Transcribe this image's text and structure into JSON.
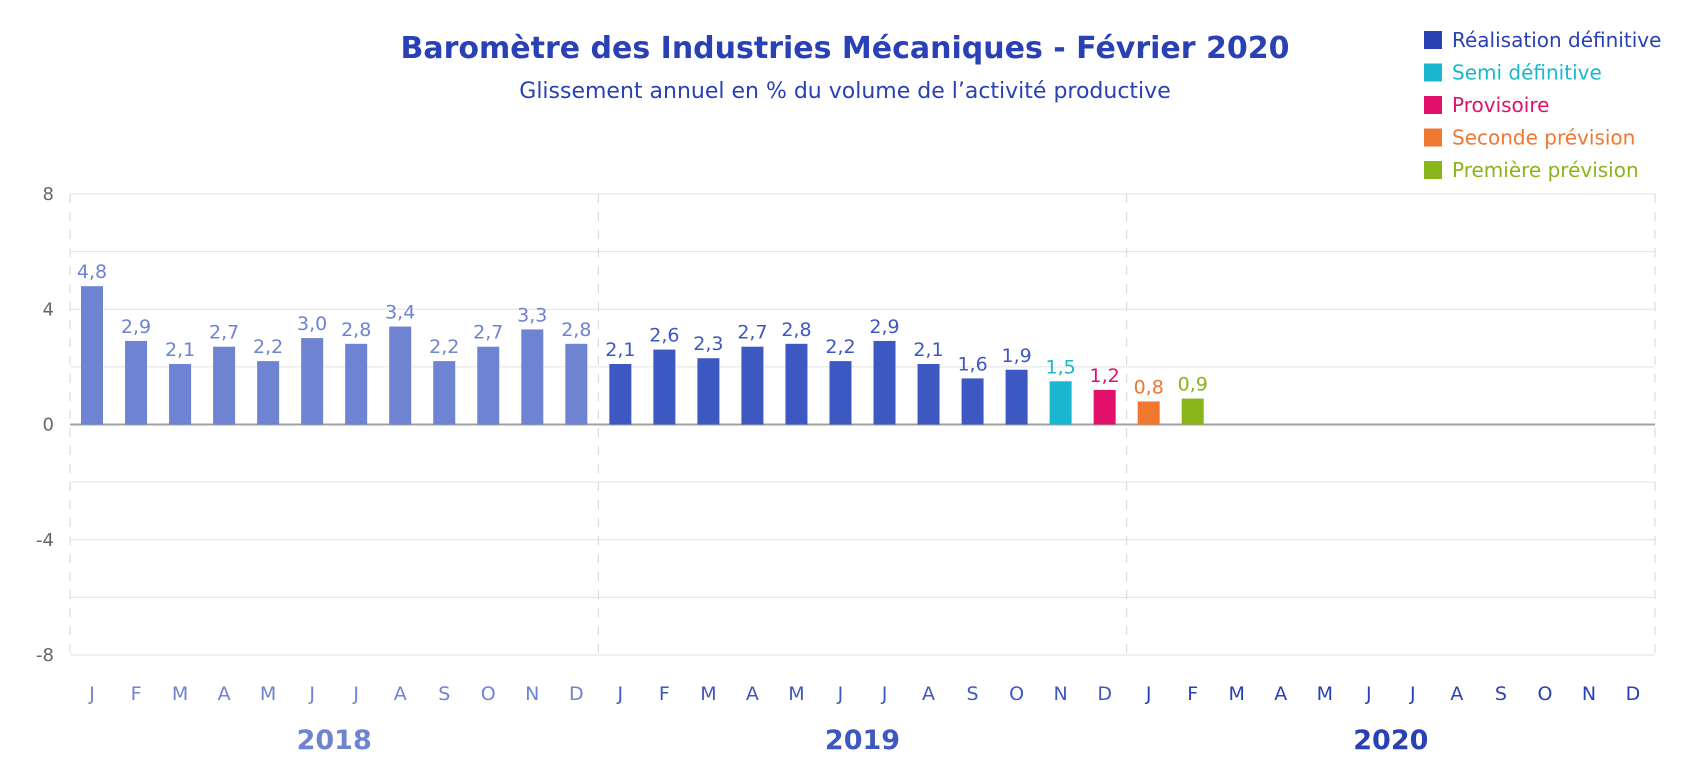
{
  "chart_data": {
    "type": "bar",
    "title": "Baromètre des Industries Mécaniques - Février 2020",
    "subtitle": "Glissement annuel en % du volume de l’activité productive",
    "ylim": [
      -8,
      8
    ],
    "y_ticks": [
      "8",
      "4",
      "0",
      "-4",
      "-8"
    ],
    "grid": true,
    "legend_position": "top-right",
    "legend": [
      {
        "label": "Réalisation définitive",
        "color": "#2a40b5"
      },
      {
        "label": "Semi définitive",
        "color": "#19b7cf"
      },
      {
        "label": "Provisoire",
        "color": "#e0106b"
      },
      {
        "label": "Seconde prévision",
        "color": "#f0772f"
      },
      {
        "label": "Première prévision",
        "color": "#8ab51a"
      }
    ],
    "years": [
      {
        "label": "2018",
        "color": "#6e83d2"
      },
      {
        "label": "2019",
        "color": "#3d59c1"
      },
      {
        "label": "2020",
        "color": "#2a40b5"
      }
    ],
    "months": [
      "J",
      "F",
      "M",
      "A",
      "M",
      "J",
      "J",
      "A",
      "S",
      "O",
      "N",
      "D"
    ],
    "bars": [
      {
        "year": 0,
        "value": 4.8,
        "label": "4,8",
        "color": "#6e83d2"
      },
      {
        "year": 0,
        "value": 2.9,
        "label": "2,9",
        "color": "#6e83d2"
      },
      {
        "year": 0,
        "value": 2.1,
        "label": "2,1",
        "color": "#6e83d2"
      },
      {
        "year": 0,
        "value": 2.7,
        "label": "2,7",
        "color": "#6e83d2"
      },
      {
        "year": 0,
        "value": 2.2,
        "label": "2,2",
        "color": "#6e83d2"
      },
      {
        "year": 0,
        "value": 3.0,
        "label": "3,0",
        "color": "#6e83d2"
      },
      {
        "year": 0,
        "value": 2.8,
        "label": "2,8",
        "color": "#6e83d2"
      },
      {
        "year": 0,
        "value": 3.4,
        "label": "3,4",
        "color": "#6e83d2"
      },
      {
        "year": 0,
        "value": 2.2,
        "label": "2,2",
        "color": "#6e83d2"
      },
      {
        "year": 0,
        "value": 2.7,
        "label": "2,7",
        "color": "#6e83d2"
      },
      {
        "year": 0,
        "value": 3.3,
        "label": "3,3",
        "color": "#6e83d2"
      },
      {
        "year": 0,
        "value": 2.8,
        "label": "2,8",
        "color": "#6e83d2"
      },
      {
        "year": 1,
        "value": 2.1,
        "label": "2,1",
        "color": "#3d59c1"
      },
      {
        "year": 1,
        "value": 2.6,
        "label": "2,6",
        "color": "#3d59c1"
      },
      {
        "year": 1,
        "value": 2.3,
        "label": "2,3",
        "color": "#3d59c1"
      },
      {
        "year": 1,
        "value": 2.7,
        "label": "2,7",
        "color": "#3d59c1"
      },
      {
        "year": 1,
        "value": 2.8,
        "label": "2,8",
        "color": "#3d59c1"
      },
      {
        "year": 1,
        "value": 2.2,
        "label": "2,2",
        "color": "#3d59c1"
      },
      {
        "year": 1,
        "value": 2.9,
        "label": "2,9",
        "color": "#3d59c1"
      },
      {
        "year": 1,
        "value": 2.1,
        "label": "2,1",
        "color": "#3d59c1"
      },
      {
        "year": 1,
        "value": 1.6,
        "label": "1,6",
        "color": "#3d59c1"
      },
      {
        "year": 1,
        "value": 1.9,
        "label": "1,9",
        "color": "#3d59c1"
      },
      {
        "year": 1,
        "value": 1.5,
        "label": "1,5",
        "color": "#19b7cf"
      },
      {
        "year": 1,
        "value": 1.2,
        "label": "1,2",
        "color": "#e0106b"
      },
      {
        "year": 2,
        "value": 0.8,
        "label": "0,8",
        "color": "#f0772f"
      },
      {
        "year": 2,
        "value": 0.9,
        "label": "0,9",
        "color": "#8ab51a"
      }
    ]
  }
}
